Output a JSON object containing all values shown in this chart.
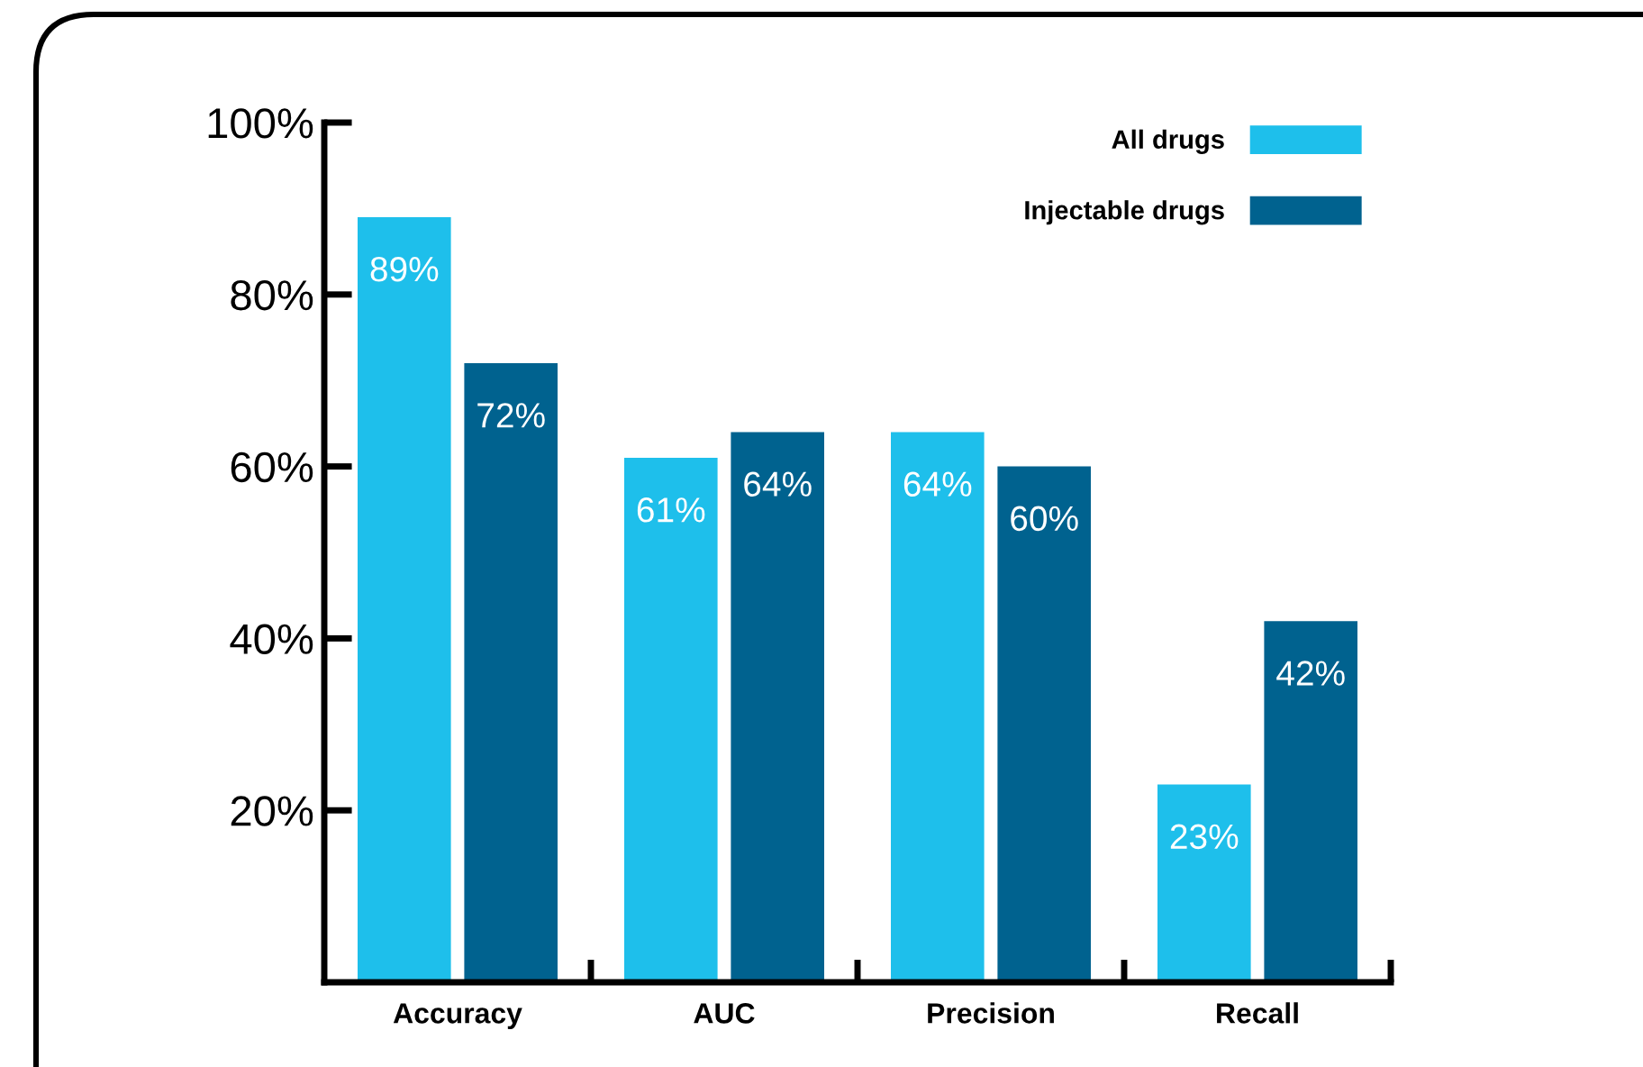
{
  "chart_data": {
    "type": "bar",
    "categories": [
      "Accuracy",
      "AUC",
      "Precision",
      "Recall"
    ],
    "series": [
      {
        "name": "All drugs",
        "color": "#1ebfeb",
        "values": [
          89,
          61,
          64,
          23
        ],
        "value_labels": [
          "89%",
          "61%",
          "64%",
          "23%"
        ]
      },
      {
        "name": "Injectable drugs",
        "color": "#00628f",
        "values": [
          72,
          64,
          60,
          42
        ],
        "value_labels": [
          "72%",
          "64%",
          "60%",
          "42%"
        ]
      }
    ],
    "ylim": [
      0,
      100
    ],
    "yticks": [
      {
        "value": 20,
        "label": "20%"
      },
      {
        "value": 40,
        "label": "40%"
      },
      {
        "value": 60,
        "label": "60%"
      },
      {
        "value": 80,
        "label": "80%"
      },
      {
        "value": 100,
        "label": "100%"
      }
    ],
    "legend": "top right",
    "grid": false
  }
}
